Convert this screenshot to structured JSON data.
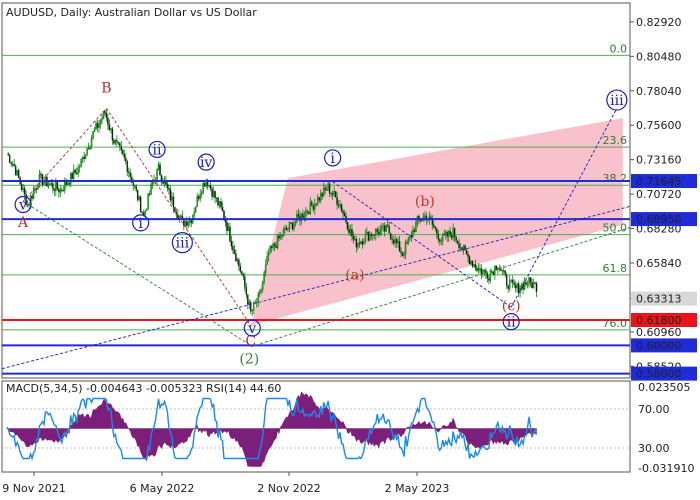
{
  "chart_data": {
    "type": "candlestick",
    "title": "AUDUSD, Daily:  Australian Dollar vs US Dollar",
    "price_axis": {
      "ticks": [
        "0.82920",
        "0.80480",
        "0.78040",
        "0.75600",
        "0.73160",
        "0.70720",
        "0.68280",
        "0.65840",
        "0.63313",
        "0.60960",
        "0.58520"
      ],
      "ylim": [
        0.5769,
        0.8426
      ]
    },
    "time_axis": {
      "labels": [
        "9 Nov 2021",
        "6 May 2022",
        "2 Nov 2022",
        "2 May 2023"
      ]
    },
    "current_price": {
      "label": "0.63313",
      "value": 0.63313
    },
    "horizontal_levels": [
      {
        "label": "0.71645",
        "value": 0.71645,
        "color": "#1f2bd6"
      },
      {
        "label": "0.68950",
        "value": 0.6895,
        "color": "#1f2bd6"
      },
      {
        "label": "0.61800",
        "value": 0.618,
        "color": "#e8151b"
      },
      {
        "label": "0.60000",
        "value": 0.6,
        "color": "#1f2bd6"
      },
      {
        "label": "0.58000",
        "value": 0.58,
        "color": "#1f2bd6"
      }
    ],
    "fibonacci_levels": [
      {
        "label": "0.0",
        "value": 0.8055
      },
      {
        "label": "23.6",
        "value": 0.7405
      },
      {
        "label": "38.2",
        "value": 0.7135
      },
      {
        "label": "50.0",
        "value": 0.6785
      },
      {
        "label": "61.8",
        "value": 0.65
      },
      {
        "label": "76.0",
        "value": 0.611
      }
    ],
    "wave_labels": [
      {
        "text": "A",
        "date_index": 11,
        "price": 0.6845,
        "color": "#b03030",
        "circled": false
      },
      {
        "text": "v",
        "date_index": 11,
        "price": 0.697,
        "color": "#1c1cb8",
        "circled": true
      },
      {
        "text": "B",
        "date_index": 67,
        "price": 0.78,
        "color": "#b03030",
        "circled": false
      },
      {
        "text": "ii",
        "date_index": 101,
        "price": 0.736,
        "color": "#1c1cb8",
        "circled": true
      },
      {
        "text": "i",
        "date_index": 90,
        "price": 0.684,
        "color": "#1c1cb8",
        "circled": true
      },
      {
        "text": "iv",
        "date_index": 134,
        "price": 0.727,
        "color": "#1c1cb8",
        "circled": true
      },
      {
        "text": "iii",
        "date_index": 118,
        "price": 0.67,
        "color": "#1c1cb8",
        "circled": true
      },
      {
        "text": "C",
        "date_index": 164,
        "price": 0.6005,
        "color": "#b03030",
        "circled": false
      },
      {
        "text": "v",
        "date_index": 165,
        "price": 0.6095,
        "color": "#1c1cb8",
        "circled": true
      },
      {
        "text": "(2)",
        "date_index": 163,
        "price": 0.588,
        "color": "#2e7d32",
        "circled": false
      },
      {
        "text": "i",
        "date_index": 219,
        "price": 0.73,
        "color": "#1c1cb8",
        "circled": true
      },
      {
        "text": "(a)",
        "date_index": 234,
        "price": 0.6475,
        "color": "#c0392b",
        "circled": false
      },
      {
        "text": "(b)",
        "date_index": 281,
        "price": 0.6995,
        "color": "#c0392b",
        "circled": false
      },
      {
        "text": "(c)",
        "date_index": 339,
        "price": 0.6255,
        "color": "#c0392b",
        "circled": false
      },
      {
        "text": "ii",
        "date_index": 339,
        "price": 0.614,
        "color": "#1c1cb8",
        "circled": true
      },
      {
        "text": "iii",
        "date_index": 410,
        "price": 0.771,
        "color": "#1c1cb8",
        "circled": true
      }
    ],
    "indicator": {
      "label": "MACD(5,34,5) -0.004643 -0.005323 RSI(14) 44.60",
      "ticks": [
        "0.023505",
        "70.00",
        "30.00",
        "-0.031910"
      ]
    }
  }
}
